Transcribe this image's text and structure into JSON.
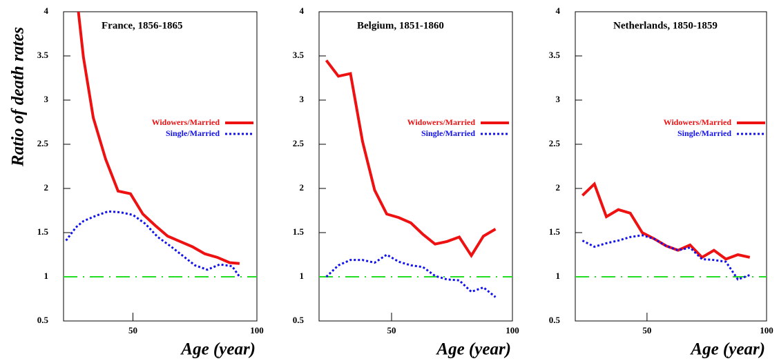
{
  "chart_data": [
    {
      "type": "line",
      "title": "France, 1856-1865",
      "ylabel": "Ratio of death rates",
      "xlabel": "Age (year)",
      "xlim": [
        22,
        100
      ],
      "ylim": [
        0.5,
        4
      ],
      "xticks": [
        50,
        100
      ],
      "yticks": [
        0.5,
        1,
        1.5,
        2,
        2.5,
        3,
        3.5,
        4
      ],
      "hline": {
        "value": 1,
        "color": "#22dd22"
      },
      "series": [
        {
          "name": "Widowers/Married",
          "color": "#ee1111",
          "style": "solid",
          "x": [
            28,
            30,
            34,
            39,
            44,
            49,
            54,
            59,
            64,
            69,
            74,
            79,
            84,
            89,
            93
          ],
          "values": [
            4,
            3.49,
            2.8,
            2.33,
            1.97,
            1.94,
            1.71,
            1.58,
            1.46,
            1.4,
            1.34,
            1.26,
            1.22,
            1.16,
            1.15
          ]
        },
        {
          "name": "Single/Married",
          "color": "#1111ee",
          "style": "dotted",
          "x": [
            23,
            27,
            30,
            35,
            40,
            45,
            50,
            55,
            60,
            65,
            70,
            75,
            80,
            85,
            90,
            93
          ],
          "values": [
            1.41,
            1.56,
            1.63,
            1.69,
            1.74,
            1.73,
            1.7,
            1.6,
            1.45,
            1.35,
            1.24,
            1.13,
            1.08,
            1.14,
            1.12,
            1.0
          ]
        }
      ]
    },
    {
      "type": "line",
      "title": "Belgium, 1851-1860",
      "xlabel": "Age (year)",
      "xlim": [
        20,
        100
      ],
      "ylim": [
        0.5,
        4
      ],
      "xticks": [
        50,
        100
      ],
      "yticks": [
        0.5,
        1,
        1.5,
        2,
        2.5,
        3,
        3.5,
        4
      ],
      "hline": {
        "value": 1,
        "color": "#22dd22"
      },
      "series": [
        {
          "name": "Widowers/Married",
          "color": "#ee1111",
          "style": "solid",
          "x": [
            23,
            28,
            33,
            38,
            43,
            48,
            53,
            58,
            63,
            68,
            73,
            78,
            83,
            88,
            93
          ],
          "values": [
            3.45,
            3.27,
            3.3,
            2.53,
            1.98,
            1.71,
            1.67,
            1.61,
            1.48,
            1.37,
            1.4,
            1.45,
            1.24,
            1.46,
            1.54
          ]
        },
        {
          "name": "Single/Married",
          "color": "#1111ee",
          "style": "dotted",
          "x": [
            23,
            28,
            33,
            38,
            43,
            48,
            53,
            58,
            63,
            68,
            73,
            78,
            83,
            88,
            93
          ],
          "values": [
            1.0,
            1.13,
            1.19,
            1.19,
            1.16,
            1.25,
            1.17,
            1.13,
            1.11,
            1.01,
            0.97,
            0.96,
            0.83,
            0.88,
            0.77
          ]
        }
      ]
    },
    {
      "type": "line",
      "title": "Netherlands, 1850-1859",
      "xlabel": "Age (year)",
      "xlim": [
        20,
        100
      ],
      "ylim": [
        0.5,
        4
      ],
      "xticks": [
        50,
        100
      ],
      "yticks": [
        0.5,
        1,
        1.5,
        2,
        2.5,
        3,
        3.5,
        4
      ],
      "hline": {
        "value": 1,
        "color": "#22dd22"
      },
      "series": [
        {
          "name": "Widowers/Married",
          "color": "#ee1111",
          "style": "solid",
          "x": [
            23,
            28,
            33,
            38,
            43,
            48,
            53,
            58,
            63,
            68,
            73,
            78,
            83,
            88,
            93
          ],
          "values": [
            1.92,
            2.05,
            1.68,
            1.76,
            1.72,
            1.5,
            1.43,
            1.35,
            1.3,
            1.36,
            1.22,
            1.3,
            1.2,
            1.25,
            1.22
          ]
        },
        {
          "name": "Single/Married",
          "color": "#1111ee",
          "style": "dotted",
          "x": [
            23,
            28,
            33,
            38,
            43,
            48,
            53,
            58,
            63,
            68,
            73,
            78,
            83,
            88,
            93
          ],
          "values": [
            1.41,
            1.34,
            1.38,
            1.41,
            1.45,
            1.47,
            1.43,
            1.35,
            1.3,
            1.33,
            1.2,
            1.19,
            1.17,
            0.97,
            1.02
          ]
        }
      ]
    }
  ]
}
